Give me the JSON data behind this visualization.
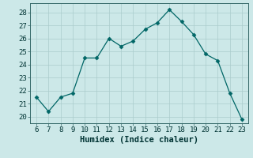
{
  "x": [
    6,
    7,
    8,
    9,
    10,
    11,
    12,
    13,
    14,
    15,
    16,
    17,
    18,
    19,
    20,
    21,
    22,
    23
  ],
  "y": [
    21.5,
    20.4,
    21.5,
    21.8,
    24.5,
    24.5,
    26.0,
    25.4,
    25.8,
    26.7,
    27.2,
    28.2,
    27.3,
    26.3,
    24.8,
    24.3,
    21.8,
    19.8
  ],
  "xlabel": "Humidex (Indice chaleur)",
  "xlim": [
    5.5,
    23.5
  ],
  "ylim": [
    19.5,
    28.7
  ],
  "yticks": [
    20,
    21,
    22,
    23,
    24,
    25,
    26,
    27,
    28
  ],
  "xticks": [
    6,
    7,
    8,
    9,
    10,
    11,
    12,
    13,
    14,
    15,
    16,
    17,
    18,
    19,
    20,
    21,
    22,
    23
  ],
  "line_color": "#006666",
  "marker": "D",
  "marker_size": 2.5,
  "background_color": "#cce8e8",
  "grid_color": "#aacccc",
  "tick_label_fontsize": 6.5,
  "xlabel_fontsize": 7.5
}
